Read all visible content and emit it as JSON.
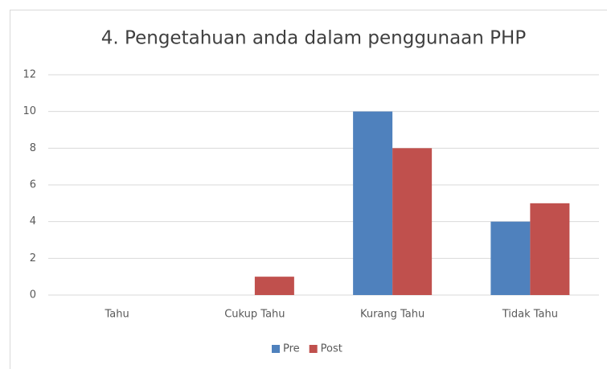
{
  "chart_data": {
    "type": "bar",
    "title": "4. Pengetahuan anda dalam penggunaan PHP",
    "categories": [
      "Tahu",
      "Cukup Tahu",
      "Kurang Tahu",
      "Tidak Tahu"
    ],
    "series": [
      {
        "name": "Pre",
        "color": "#4f81bd",
        "values": [
          0,
          0,
          10,
          4
        ]
      },
      {
        "name": "Post",
        "color": "#c0504d",
        "values": [
          0,
          1,
          8,
          5
        ]
      }
    ],
    "ylim": [
      0,
      12
    ],
    "yticks": [
      0,
      2,
      4,
      6,
      8,
      10,
      12
    ],
    "grid": true,
    "legend": "bottom"
  }
}
